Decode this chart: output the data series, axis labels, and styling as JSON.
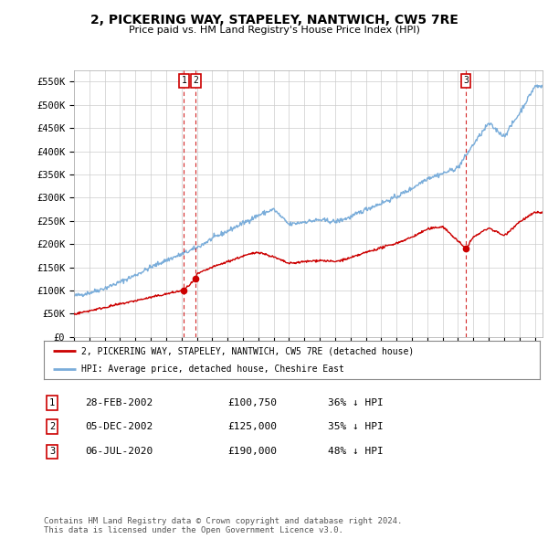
{
  "title": "2, PICKERING WAY, STAPELEY, NANTWICH, CW5 7RE",
  "subtitle": "Price paid vs. HM Land Registry's House Price Index (HPI)",
  "ylabel_ticks": [
    "£0",
    "£50K",
    "£100K",
    "£150K",
    "£200K",
    "£250K",
    "£300K",
    "£350K",
    "£400K",
    "£450K",
    "£500K",
    "£550K"
  ],
  "ytick_values": [
    0,
    50000,
    100000,
    150000,
    200000,
    250000,
    300000,
    350000,
    400000,
    450000,
    500000,
    550000
  ],
  "ylim": [
    0,
    575000
  ],
  "xlim_start": 1995.0,
  "xlim_end": 2025.5,
  "hpi_color": "#7aadda",
  "price_color": "#cc0000",
  "purchase_dates": [
    2002.16,
    2002.92,
    2020.51
  ],
  "purchase_prices": [
    100750,
    125000,
    190000
  ],
  "purchase_labels": [
    "1",
    "2",
    "3"
  ],
  "legend_label_price": "2, PICKERING WAY, STAPELEY, NANTWICH, CW5 7RE (detached house)",
  "legend_label_hpi": "HPI: Average price, detached house, Cheshire East",
  "table_rows": [
    [
      "1",
      "28-FEB-2002",
      "£100,750",
      "36% ↓ HPI"
    ],
    [
      "2",
      "05-DEC-2002",
      "£125,000",
      "35% ↓ HPI"
    ],
    [
      "3",
      "06-JUL-2020",
      "£190,000",
      "48% ↓ HPI"
    ]
  ],
  "footnote": "Contains HM Land Registry data © Crown copyright and database right 2024.\nThis data is licensed under the Open Government Licence v3.0.",
  "background_color": "#ffffff",
  "grid_color": "#cccccc",
  "hpi_nodes_x": [
    1995,
    1996,
    1997,
    1998,
    1999,
    2000,
    2001,
    2002,
    2003,
    2004,
    2005,
    2006,
    2007,
    2008,
    2009,
    2010,
    2011,
    2012,
    2013,
    2014,
    2015,
    2016,
    2017,
    2018,
    2019,
    2020,
    2021,
    2022,
    2023,
    2024,
    2025
  ],
  "hpi_nodes_y": [
    88000,
    95000,
    105000,
    118000,
    133000,
    150000,
    165000,
    178000,
    192000,
    212000,
    228000,
    245000,
    262000,
    275000,
    242000,
    248000,
    252000,
    248000,
    258000,
    275000,
    288000,
    302000,
    320000,
    342000,
    352000,
    365000,
    415000,
    460000,
    432000,
    482000,
    540000
  ],
  "price_nodes_x": [
    1995,
    2002.16,
    2002.92,
    2003,
    2004,
    2005,
    2006,
    2007,
    2008,
    2009,
    2010,
    2011,
    2012,
    2013,
    2014,
    2015,
    2016,
    2017,
    2018,
    2019,
    2020.51,
    2021,
    2022,
    2023,
    2024,
    2025
  ],
  "price_nodes_y": [
    49000,
    100750,
    125000,
    135000,
    150000,
    162000,
    174000,
    183000,
    172000,
    158000,
    162000,
    165000,
    162000,
    170000,
    182000,
    192000,
    202000,
    215000,
    232000,
    238000,
    190000,
    215000,
    235000,
    218000,
    248000,
    268000
  ]
}
